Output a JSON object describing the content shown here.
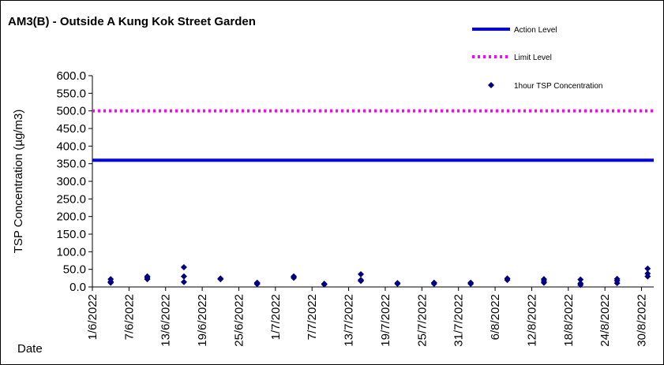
{
  "chart_data": {
    "type": "scatter",
    "title": "AM3(B) - Outside A Kung Kok Street Garden",
    "xlabel": "Date",
    "ylabel": "TSP Concentration (µg/m3)",
    "ylim": [
      0,
      600
    ],
    "yticks": [
      "0.0",
      "50.0",
      "100.0",
      "150.0",
      "200.0",
      "250.0",
      "300.0",
      "350.0",
      "400.0",
      "450.0",
      "500.0",
      "550.0",
      "600.0"
    ],
    "xlim": [
      "2022-06-01",
      "2022-09-01"
    ],
    "xticks": [
      "1/6/2022",
      "7/6/2022",
      "13/6/2022",
      "19/6/2022",
      "25/6/2022",
      "1/7/2022",
      "7/7/2022",
      "13/7/2022",
      "19/7/2022",
      "25/7/2022",
      "31/7/2022",
      "6/8/2022",
      "12/8/2022",
      "18/8/2022",
      "24/8/2022",
      "30/8/2022"
    ],
    "grid": false,
    "legend_position": "top-right",
    "colors": {
      "action": "#0000FF",
      "limit": "#FF00FF",
      "points": "#000080"
    },
    "series": [
      {
        "name": "Action Level",
        "style": "line",
        "value": 360
      },
      {
        "name": "Limit Level",
        "style": "dotted",
        "value": 500
      },
      {
        "name": "1hour TSP Concentration",
        "style": "marker",
        "points": [
          [
            "2022-06-04",
            22
          ],
          [
            "2022-06-04",
            15
          ],
          [
            "2022-06-04",
            12
          ],
          [
            "2022-06-10",
            30
          ],
          [
            "2022-06-10",
            26
          ],
          [
            "2022-06-10",
            22
          ],
          [
            "2022-06-16",
            56
          ],
          [
            "2022-06-16",
            30
          ],
          [
            "2022-06-16",
            14
          ],
          [
            "2022-06-22",
            24
          ],
          [
            "2022-06-22",
            22
          ],
          [
            "2022-06-28",
            12
          ],
          [
            "2022-06-28",
            10
          ],
          [
            "2022-06-28",
            8
          ],
          [
            "2022-07-04",
            30
          ],
          [
            "2022-07-04",
            26
          ],
          [
            "2022-07-09",
            9
          ],
          [
            "2022-07-09",
            7
          ],
          [
            "2022-07-15",
            36
          ],
          [
            "2022-07-15",
            20
          ],
          [
            "2022-07-15",
            17
          ],
          [
            "2022-07-21",
            11
          ],
          [
            "2022-07-21",
            9
          ],
          [
            "2022-07-27",
            12
          ],
          [
            "2022-07-27",
            9
          ],
          [
            "2022-08-02",
            12
          ],
          [
            "2022-08-02",
            9
          ],
          [
            "2022-08-08",
            24
          ],
          [
            "2022-08-08",
            20
          ],
          [
            "2022-08-14",
            22
          ],
          [
            "2022-08-14",
            17
          ],
          [
            "2022-08-14",
            12
          ],
          [
            "2022-08-20",
            21
          ],
          [
            "2022-08-20",
            10
          ],
          [
            "2022-08-20",
            6
          ],
          [
            "2022-08-26",
            23
          ],
          [
            "2022-08-26",
            18
          ],
          [
            "2022-08-26",
            11
          ],
          [
            "2022-08-31",
            52
          ],
          [
            "2022-08-31",
            38
          ],
          [
            "2022-08-31",
            30
          ]
        ]
      }
    ]
  }
}
